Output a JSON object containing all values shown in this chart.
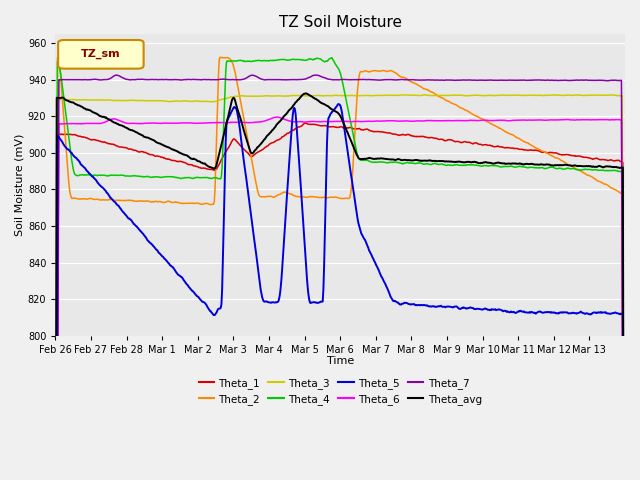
{
  "title": "TZ Soil Moisture",
  "ylabel": "Soil Moisture (mV)",
  "xlabel": "Time",
  "ylim": [
    800,
    965
  ],
  "yticks": [
    800,
    820,
    840,
    860,
    880,
    900,
    920,
    940,
    960
  ],
  "fig_facecolor": "#f0f0f0",
  "ax_facecolor": "#e8e8e8",
  "legend_label": "TZ_sm",
  "series_colors": {
    "Theta_1": "#dd0000",
    "Theta_2": "#ff8800",
    "Theta_3": "#cccc00",
    "Theta_4": "#00cc00",
    "Theta_5": "#0000dd",
    "Theta_6": "#ff00ff",
    "Theta_7": "#8800aa",
    "Theta_avg": "#000000"
  },
  "date_labels": [
    "Feb 26",
    "Feb 27",
    "Feb 28",
    "Mar 1",
    "Mar 2",
    "Mar 3",
    "Mar 4",
    "Mar 5",
    "Mar 6",
    "Mar 7",
    "Mar 8",
    "Mar 9",
    "Mar 10",
    "Mar 11",
    "Mar 12",
    "Mar 13"
  ]
}
